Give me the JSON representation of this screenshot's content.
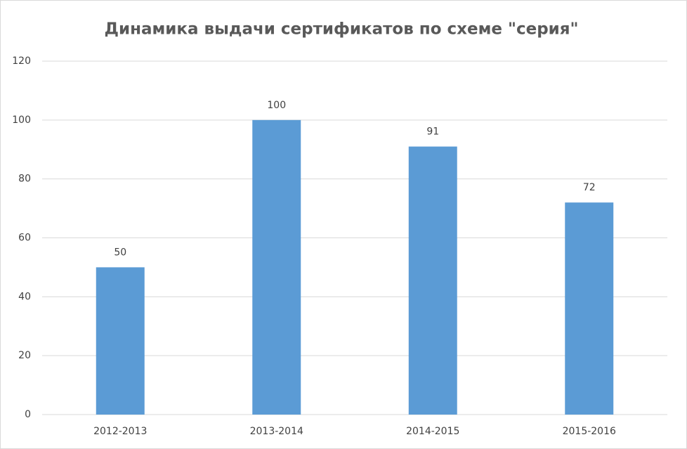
{
  "chart_data": {
    "type": "bar",
    "title": "Динамика выдачи сертификатов по схеме \"серия\"",
    "categories": [
      "2012-2013",
      "2013-2014",
      "2014-2015",
      "2015-2016"
    ],
    "values": [
      50,
      100,
      91,
      72
    ],
    "color": "#5b9bd5",
    "ylim": [
      0,
      120
    ],
    "yticks": [
      0,
      20,
      40,
      60,
      80,
      100,
      120
    ],
    "grid": true
  }
}
